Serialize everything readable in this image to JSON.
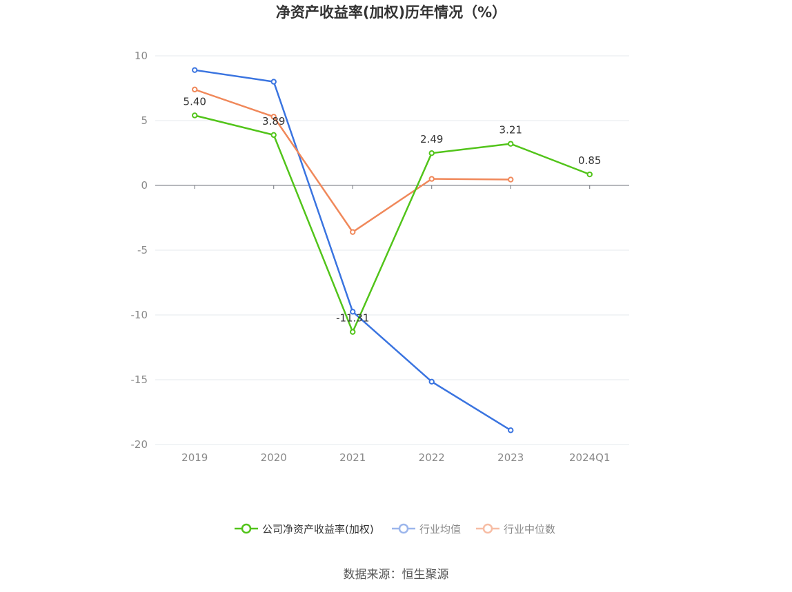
{
  "chart_data": {
    "type": "line",
    "title": "净资产收益率(加权)历年情况（%）",
    "categories": [
      "2019",
      "2020",
      "2021",
      "2022",
      "2023",
      "2024Q1"
    ],
    "ylim": [
      -20,
      10
    ],
    "yticks": [
      "10",
      "5",
      "0",
      "-5",
      "-10",
      "-15",
      "-20"
    ],
    "grid": true,
    "legend_position": "bottom-center",
    "series": [
      {
        "name": "公司净资产收益率(加权)",
        "color": "#52c41a",
        "values": [
          5.4,
          3.89,
          -11.31,
          2.49,
          3.21,
          0.85
        ],
        "labels": [
          "5.40",
          "3.89",
          "-11.31",
          "2.49",
          "3.21",
          "0.85"
        ]
      },
      {
        "name": "行业均值",
        "color": "#3a74e0",
        "legend_color": "#9cb6ec",
        "values": [
          8.9,
          8.0,
          -9.75,
          -15.15,
          -18.9,
          null
        ]
      },
      {
        "name": "行业中位数",
        "color": "#f0885a",
        "legend_color": "#f7bda4",
        "values": [
          7.4,
          5.3,
          -3.6,
          0.5,
          0.45,
          null
        ]
      }
    ]
  },
  "source_text": "数据来源：恒生聚源"
}
